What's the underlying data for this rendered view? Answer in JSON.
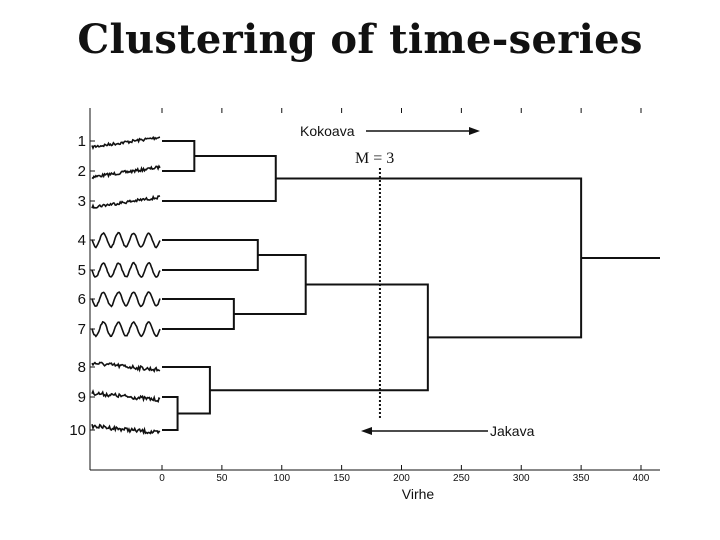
{
  "title": "Clustering of time-series",
  "axis": {
    "xlabel": "Virhe",
    "xlim": [
      0,
      400
    ],
    "ticks": [
      {
        "value": 0,
        "label": "0"
      },
      {
        "value": 50,
        "label": "50"
      },
      {
        "value": 100,
        "label": "100"
      },
      {
        "value": 150,
        "label": "150"
      },
      {
        "value": 200,
        "label": "200"
      },
      {
        "value": 250,
        "label": "250"
      },
      {
        "value": 300,
        "label": "300"
      },
      {
        "value": 350,
        "label": "350"
      },
      {
        "value": 400,
        "label": "400"
      }
    ]
  },
  "leaves": [
    "1",
    "2",
    "3",
    "4",
    "5",
    "6",
    "7",
    "8",
    "9",
    "10"
  ],
  "series_styles": [
    "trend",
    "trend",
    "trend",
    "wave",
    "wave",
    "wave",
    "wave",
    "noise",
    "noise",
    "noise"
  ],
  "merges": [
    {
      "a": 1,
      "b": 2,
      "height": 27
    },
    {
      "a": 9,
      "b": 10,
      "height": 13
    },
    {
      "a": 6,
      "b": 7,
      "height": 60
    },
    {
      "a": 8,
      "b": "C9_10",
      "height": 40
    },
    {
      "a": "C1_2",
      "b": 3,
      "height": 95
    },
    {
      "a": 4,
      "b": 5,
      "height": 80
    },
    {
      "a": "C4_5",
      "b": "C6_7",
      "height": 120
    },
    {
      "a": "C4_7",
      "b": "C8_10",
      "height": 222
    },
    {
      "a": "C1_3",
      "b": "C4_10",
      "height": 350
    }
  ],
  "annotations": {
    "coarse": "Kokoava",
    "fine": "Jakava",
    "cut_label": "M = 3",
    "cut_value": 182
  }
}
